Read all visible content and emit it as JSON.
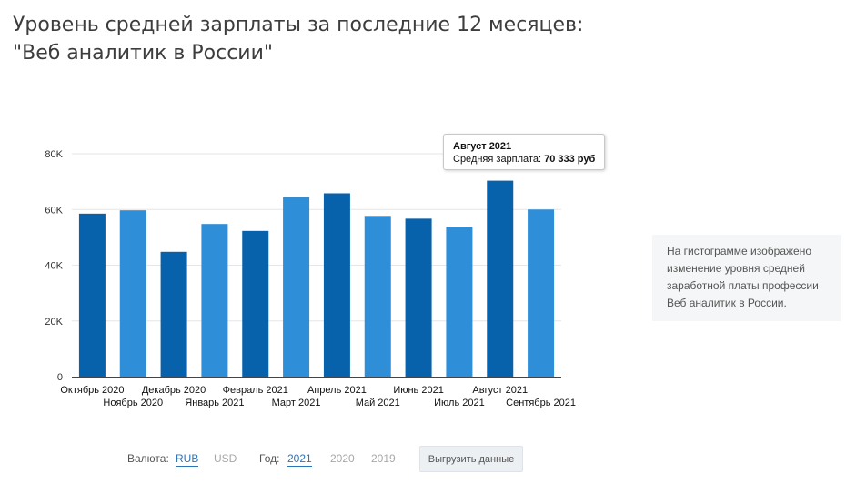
{
  "header": {
    "title_line1": "Уровень средней зарплаты за последние 12 месяцев:",
    "title_line2": "\"Веб аналитик в России\""
  },
  "chart_data": {
    "type": "bar",
    "categories": [
      "Октябрь 2020",
      "Ноябрь 2020",
      "Декабрь 2020",
      "Январь 2021",
      "Февраль 2021",
      "Март 2021",
      "Апрель 2021",
      "Май 2021",
      "Июнь 2021",
      "Июль 2021",
      "Август 2021",
      "Сентябрь 2021"
    ],
    "values": [
      58500,
      59700,
      44800,
      54800,
      52300,
      64500,
      65800,
      57700,
      56700,
      53800,
      70333,
      60000
    ],
    "ylim": [
      0,
      80000
    ],
    "y_ticks": [
      {
        "value": 0,
        "label": "0"
      },
      {
        "value": 20000,
        "label": "20K"
      },
      {
        "value": 40000,
        "label": "40K"
      },
      {
        "value": 60000,
        "label": "60K"
      },
      {
        "value": 80000,
        "label": "80K"
      }
    ],
    "colors": [
      "#0861ab",
      "#2f8ed8"
    ],
    "grid": true,
    "legend": "none",
    "highlighted_index": 10
  },
  "tooltip": {
    "title": "Август 2021",
    "label": "Средняя зарплата: ",
    "value": "70 333 руб"
  },
  "note": {
    "lines": [
      "На гистограмме изображено",
      "изменение уровня средней",
      "заработной платы профессии",
      "Веб аналитик в России."
    ]
  },
  "controls": {
    "currency_label": "Валюта:",
    "currency_options": [
      {
        "label": "RUB",
        "active": true
      },
      {
        "label": "USD",
        "active": false
      }
    ],
    "year_label": "Год:",
    "year_options": [
      {
        "label": "2021",
        "active": true
      },
      {
        "label": "2020",
        "active": false
      },
      {
        "label": "2019",
        "active": false
      }
    ],
    "export_label": "Выгрузить данные"
  }
}
